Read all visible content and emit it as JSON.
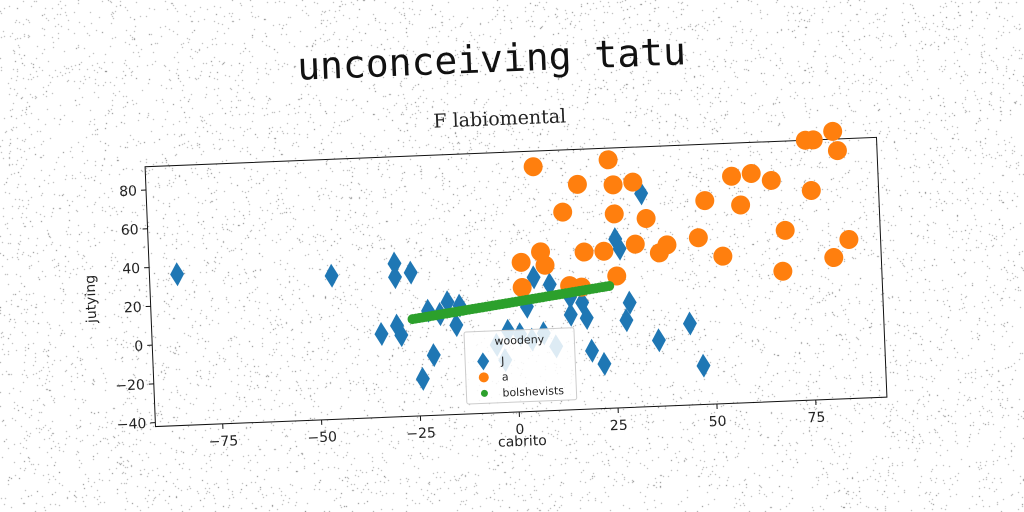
{
  "title": "unconceiving tatu",
  "subtitle": "F labiomental",
  "chart_data": {
    "type": "scatter",
    "xlabel": "cabrito",
    "ylabel": "jutying",
    "xlim": [
      -92,
      93
    ],
    "ylim": [
      -42,
      92
    ],
    "xticks": [
      -75,
      -50,
      -25,
      0,
      25,
      50,
      75
    ],
    "yticks": [
      -40,
      -20,
      0,
      20,
      40,
      60,
      80
    ],
    "grid": false,
    "legend": {
      "title": "woodeny",
      "placement": "lower-center"
    },
    "series": [
      {
        "name": "J",
        "marker": "diamond",
        "color": "#1f77b4",
        "points": [
          [
            -85,
            36
          ],
          [
            -46,
            32
          ],
          [
            -30,
            37
          ],
          [
            -30,
            30
          ],
          [
            -26,
            32
          ],
          [
            -34,
            1
          ],
          [
            -30,
            5
          ],
          [
            -29,
            0
          ],
          [
            -22,
            12
          ],
          [
            -19,
            10
          ],
          [
            -17,
            16
          ],
          [
            -14,
            14
          ],
          [
            -15,
            4
          ],
          [
            -21,
            -11
          ],
          [
            -24,
            -23
          ],
          [
            -5,
            -7
          ],
          [
            -3,
            -15
          ],
          [
            5,
            27
          ],
          [
            3,
            12
          ],
          [
            9,
            23
          ],
          [
            14,
            16
          ],
          [
            17,
            13
          ],
          [
            19,
            -12
          ],
          [
            -2,
            0
          ],
          [
            1,
            -2
          ],
          [
            4,
            -5
          ],
          [
            7,
            -2
          ],
          [
            10,
            -9
          ],
          [
            14,
            7
          ],
          [
            18,
            5
          ],
          [
            22,
            -19
          ],
          [
            26,
            45
          ],
          [
            27,
            40
          ],
          [
            28,
            3
          ],
          [
            29,
            12
          ],
          [
            33,
            68
          ],
          [
            36,
            -8
          ],
          [
            44,
            0
          ],
          [
            47,
            -22
          ]
        ]
      },
      {
        "name": "a",
        "marker": "circle",
        "color": "#ff7f0e",
        "points": [
          [
            6,
            84
          ],
          [
            7,
            40
          ],
          [
            8,
            33
          ],
          [
            2,
            35
          ],
          [
            2,
            22
          ],
          [
            13,
            60
          ],
          [
            17,
            74
          ],
          [
            18,
            39
          ],
          [
            14,
            22
          ],
          [
            17,
            21
          ],
          [
            23,
            39
          ],
          [
            25,
            86
          ],
          [
            26,
            73
          ],
          [
            26,
            58
          ],
          [
            26,
            26
          ],
          [
            31,
            74
          ],
          [
            31,
            42
          ],
          [
            34,
            55
          ],
          [
            37,
            37
          ],
          [
            39,
            41
          ],
          [
            47,
            44
          ],
          [
            49,
            63
          ],
          [
            53,
            34
          ],
          [
            56,
            75
          ],
          [
            58,
            60
          ],
          [
            61,
            76
          ],
          [
            66,
            72
          ],
          [
            68,
            25
          ],
          [
            69,
            46
          ],
          [
            75,
            92
          ],
          [
            77,
            92
          ],
          [
            76,
            66
          ],
          [
            82,
            96
          ],
          [
            83,
            86
          ],
          [
            81,
            31
          ],
          [
            85,
            40
          ]
        ]
      },
      {
        "name": "bolshevists",
        "marker": "circle-small",
        "color": "#2ca02c",
        "x_range": [
          -26,
          24
        ],
        "y_range": [
          8,
          21
        ],
        "count": 60
      }
    ]
  }
}
